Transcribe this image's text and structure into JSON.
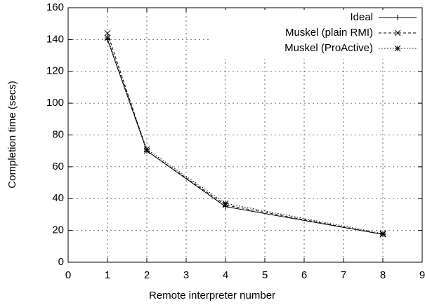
{
  "chart_data": {
    "type": "line",
    "xlabel": "Remote interpreter number",
    "ylabel": "Completion time (secs)",
    "x": [
      1,
      2,
      4,
      8
    ],
    "series": [
      {
        "name": "Ideal",
        "color": "#000000",
        "dash": "none",
        "marker": "plus",
        "values": [
          140,
          70,
          35,
          17.5
        ]
      },
      {
        "name": "Muskel (plain RMI)",
        "color": "#000000",
        "dash": "4,3",
        "marker": "cross",
        "values": [
          144,
          70,
          36,
          17.5
        ]
      },
      {
        "name": "Muskel (ProActive)",
        "color": "#000000",
        "dash": "1.5,2.5",
        "marker": "star",
        "values": [
          141,
          71,
          37,
          18
        ]
      }
    ],
    "xlim": [
      0,
      9
    ],
    "xticks": [
      0,
      1,
      2,
      3,
      4,
      5,
      6,
      7,
      8,
      9
    ],
    "ylim": [
      0,
      160
    ],
    "yticks": [
      0,
      20,
      40,
      60,
      80,
      100,
      120,
      140,
      160
    ],
    "grid": true,
    "legend": "top-right"
  }
}
